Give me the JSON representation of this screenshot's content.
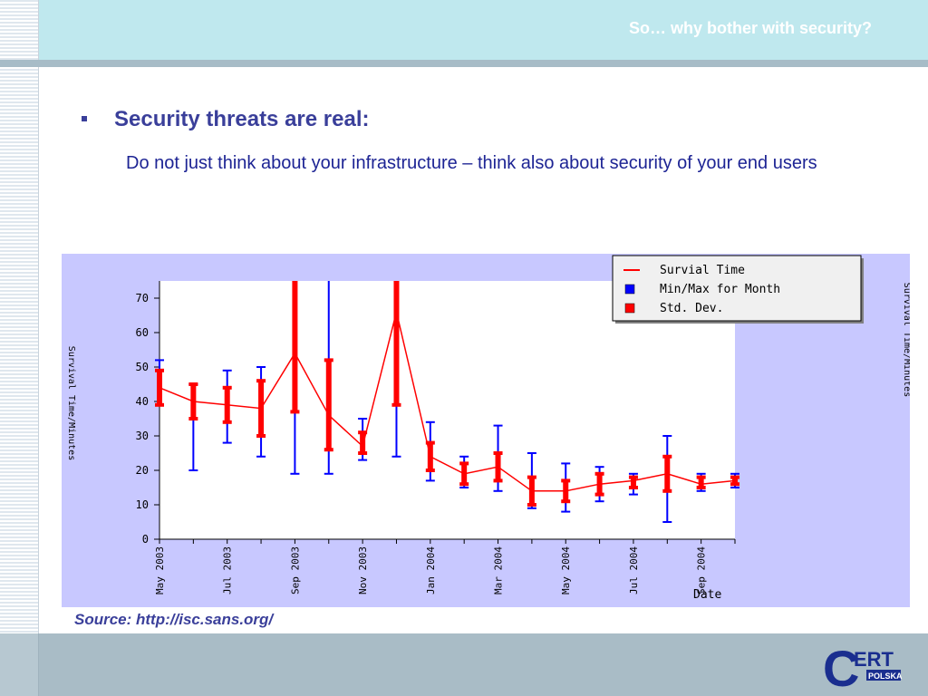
{
  "header": {
    "title": "So… why bother with security?"
  },
  "content": {
    "heading": "Security threats are real:",
    "subtext": "Do not just think about your infrastructure – think also about security of your end users"
  },
  "source": "Source: http://isc.sans.org/",
  "logo": {
    "text_main": "ERT",
    "text_sub": "POLSKA",
    "letter": "C"
  },
  "chart_data": {
    "type": "line",
    "ylabel": "Survival Time/Minutes",
    "ylabel_right": "Survival Time/Minutes",
    "xlabel": "Date",
    "ylim": [
      0,
      75
    ],
    "yticks": [
      0,
      10,
      20,
      30,
      40,
      50,
      60,
      70
    ],
    "x": [
      "May 2003",
      "Jun 2003",
      "Jul 2003",
      "Aug 2003",
      "Sep 2003",
      "Oct 2003",
      "Nov 2003",
      "Dec 2003",
      "Jan 2004",
      "Feb 2004",
      "Mar 2004",
      "Apr 2004",
      "May 2004",
      "Jun 2004",
      "Jul 2004",
      "Aug 2004",
      "Sep 2004",
      "Oct 2004"
    ],
    "xtick_labels": [
      "May 2003",
      "",
      "Jul 2003",
      "",
      "Sep 2003",
      "",
      "Nov 2003",
      "",
      "Jan 2004",
      "",
      "Mar 2004",
      "",
      "May 2004",
      "",
      "Jul 2004",
      "",
      "Sep 2004",
      ""
    ],
    "legend": {
      "position": "top-right",
      "entries": [
        {
          "label": "Survial Time",
          "color": "#ff0000",
          "kind": "line"
        },
        {
          "label": "Min/Max for Month",
          "color": "#0000ff",
          "kind": "box"
        },
        {
          "label": "Std. Dev.",
          "color": "#ff0000",
          "kind": "box"
        }
      ]
    },
    "series": [
      {
        "name": "Survial Time",
        "color": "#ff0000",
        "values": [
          44,
          40,
          39,
          38,
          54,
          36,
          27,
          66,
          24,
          19,
          21,
          14,
          14,
          16,
          17,
          19,
          16,
          17
        ]
      },
      {
        "name": "Min/Max for Month",
        "color": "#0000ff",
        "min": [
          39,
          20,
          28,
          24,
          19,
          19,
          23,
          24,
          17,
          15,
          14,
          9,
          8,
          11,
          13,
          5,
          14,
          15
        ],
        "max": [
          52,
          45,
          49,
          50,
          85,
          85,
          35,
          85,
          34,
          24,
          33,
          25,
          22,
          21,
          19,
          30,
          19,
          19
        ]
      },
      {
        "name": "Std. Dev.",
        "color": "#ff0000",
        "low": [
          39,
          35,
          34,
          30,
          37,
          26,
          25,
          39,
          20,
          16,
          17,
          10,
          11,
          13,
          15,
          14,
          15,
          16
        ],
        "high": [
          49,
          45,
          44,
          46,
          85,
          52,
          31,
          85,
          28,
          22,
          25,
          18,
          17,
          19,
          18,
          24,
          18,
          18
        ]
      }
    ],
    "colors": {
      "background": "#c8c8ff",
      "plot": "#ffffff",
      "legend_bg": "#f0f0f0"
    }
  }
}
